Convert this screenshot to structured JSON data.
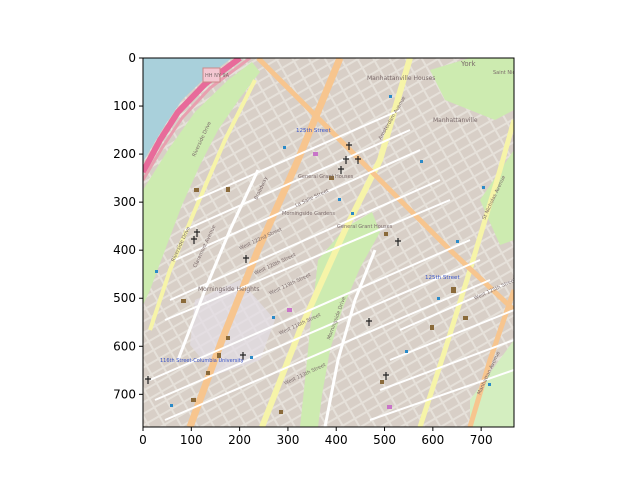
{
  "figure": {
    "x_ticks": [
      "0",
      "100",
      "200",
      "300",
      "400",
      "500",
      "600",
      "700"
    ],
    "y_ticks": [
      "0",
      "100",
      "200",
      "300",
      "400",
      "500",
      "600",
      "700"
    ],
    "x_range": [
      0,
      768
    ],
    "y_range": [
      768,
      0
    ]
  },
  "map": {
    "labels": {
      "route": "HH NY 9A",
      "manhattanville_houses": "Manhattanville Houses",
      "manhattanville": "Manhattanville",
      "york": "York",
      "saint_nicholas": "Saint Nicholas Park",
      "station_125": "125th Street",
      "grant_houses": "General Grant Houses",
      "morningside_gardens": "Morningside Gardens",
      "morningside_heights": "Morningside Heights",
      "station_116": "116th Street-Columbia University",
      "station_125_east": "125th Street",
      "riverside_drive": "Riverside Drive",
      "riverside_drive_2": "Riverside Drive",
      "broadway": "Broadway",
      "amsterdam": "Amsterdam Avenue",
      "west_125": "West 125th Street",
      "west_122": "West 122nd Street",
      "west_120": "West 120th Street",
      "west_119": "West 119th Street",
      "west_116": "West 116th Street",
      "west_113": "West 113th Street",
      "la_salle": "La Salle Street",
      "claremont": "Claremont Avenue",
      "morningside_drive": "Morningside Drive",
      "manhattan_ave": "Manhattan Avenue",
      "st_nicholas_ave": "St Nicholas Avenue"
    }
  },
  "colors": {
    "water": "#a9d0db",
    "land": "#e9e5df",
    "park": "#cdebb0",
    "building": "#d9d0c9",
    "primary_road": "#f7c58e",
    "secondary_road": "#f6f4a8",
    "railway": "#e86a9a",
    "axes": "#000000"
  }
}
